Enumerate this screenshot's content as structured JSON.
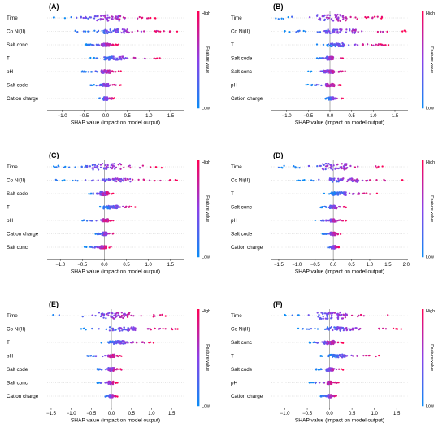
{
  "figure": {
    "colorbar": {
      "high": "High",
      "low": "Low",
      "title": "Feature value"
    },
    "colors": {
      "low": "#0A8CF5",
      "mid": "#8B40E8",
      "high": "#FF0054"
    }
  },
  "chart_data": [
    {
      "type": "scatter",
      "subtype": "shap-beeswarm",
      "panel": "(A)",
      "xlabel": "SHAP value (impact on model output)",
      "xlim": [
        -1.35,
        1.8
      ],
      "xticks": [
        "−1.0",
        "−0.5",
        "0.0",
        "0.5",
        "1.0",
        "1.5"
      ],
      "tickvalues": [
        -1.0,
        -0.5,
        0.0,
        0.5,
        1.0,
        1.5
      ],
      "features": [
        {
          "name": "Time",
          "min": -1.2,
          "max": 1.15,
          "q1": -0.25,
          "q3": 0.35,
          "width": 0.9
        },
        {
          "name": "Co Ni(II)",
          "min": -0.7,
          "max": 1.65,
          "q1": -0.05,
          "q3": 0.55,
          "width": 0.6
        },
        {
          "name": "Salt conc",
          "min": -0.45,
          "max": 0.3,
          "q1": -0.1,
          "q3": 0.1,
          "width": 0.4
        },
        {
          "name": "T",
          "min": -0.35,
          "max": 1.25,
          "q1": -0.05,
          "q3": 0.45,
          "width": 0.5
        },
        {
          "name": "pH",
          "min": -0.55,
          "max": 0.35,
          "q1": -0.1,
          "q3": 0.1,
          "width": 0.45
        },
        {
          "name": "Salt code",
          "min": -0.35,
          "max": 0.35,
          "q1": -0.08,
          "q3": 0.08,
          "width": 0.4
        },
        {
          "name": "Cation charge",
          "min": -0.15,
          "max": 0.2,
          "q1": -0.05,
          "q3": 0.05,
          "width": 0.45
        }
      ]
    },
    {
      "type": "scatter",
      "subtype": "shap-beeswarm",
      "panel": "(B)",
      "xlabel": "SHAP value (impact on model output)",
      "xlim": [
        -1.35,
        1.8
      ],
      "xticks": [
        "−1.0",
        "−0.5",
        "0.0",
        "0.5",
        "1.0",
        "1.5"
      ],
      "tickvalues": [
        -1.0,
        -0.5,
        0.0,
        0.5,
        1.0,
        1.5
      ],
      "features": [
        {
          "name": "Time",
          "min": -1.25,
          "max": 1.2,
          "q1": -0.3,
          "q3": 0.4,
          "width": 0.95
        },
        {
          "name": "Co Ni(II)",
          "min": -1.05,
          "max": 1.75,
          "q1": -0.1,
          "q3": 0.6,
          "width": 0.6
        },
        {
          "name": "T",
          "min": -0.3,
          "max": 1.35,
          "q1": -0.05,
          "q3": 0.35,
          "width": 0.5
        },
        {
          "name": "Salt code",
          "min": -0.3,
          "max": 0.3,
          "q1": -0.08,
          "q3": 0.08,
          "width": 0.45
        },
        {
          "name": "Salt conc",
          "min": -0.5,
          "max": 0.35,
          "q1": -0.15,
          "q3": 0.1,
          "width": 0.45
        },
        {
          "name": "pH",
          "min": -0.55,
          "max": 0.25,
          "q1": -0.1,
          "q3": 0.1,
          "width": 0.4
        },
        {
          "name": "Cation charge",
          "min": -0.1,
          "max": 0.3,
          "q1": -0.05,
          "q3": 0.08,
          "width": 0.4
        }
      ]
    },
    {
      "type": "scatter",
      "subtype": "shap-beeswarm",
      "panel": "(C)",
      "xlabel": "SHAP value (impact on model output)",
      "xlim": [
        -1.3,
        1.8
      ],
      "xticks": [
        "−1.0",
        "−0.5",
        "0.0",
        "0.5",
        "1.0",
        "1.5"
      ],
      "tickvalues": [
        -1.0,
        -0.5,
        0.0,
        0.5,
        1.0,
        1.5
      ],
      "features": [
        {
          "name": "Time",
          "min": -1.15,
          "max": 1.3,
          "q1": -0.3,
          "q3": 0.4,
          "width": 0.95
        },
        {
          "name": "Co Ni(II)",
          "min": -1.1,
          "max": 1.65,
          "q1": -0.05,
          "q3": 0.6,
          "width": 0.55
        },
        {
          "name": "Salt code",
          "min": -0.35,
          "max": 0.2,
          "q1": -0.1,
          "q3": 0.1,
          "width": 0.5
        },
        {
          "name": "T",
          "min": -0.1,
          "max": 0.7,
          "q1": -0.02,
          "q3": 0.3,
          "width": 0.45
        },
        {
          "name": "pH",
          "min": -0.5,
          "max": 0.2,
          "q1": -0.05,
          "q3": 0.08,
          "width": 0.4
        },
        {
          "name": "Cation charge",
          "min": -0.2,
          "max": 0.2,
          "q1": -0.05,
          "q3": 0.05,
          "width": 0.45
        },
        {
          "name": "Salt conc",
          "min": -0.45,
          "max": 0.15,
          "q1": -0.1,
          "q3": 0.05,
          "width": 0.4
        }
      ]
    },
    {
      "type": "scatter",
      "subtype": "shap-beeswarm",
      "panel": "(D)",
      "xlabel": "SHAP value (impact on model output)",
      "xlim": [
        -1.7,
        2.05
      ],
      "xticks": [
        "−1.5",
        "−1.0",
        "−0.5",
        "0.0",
        "0.5",
        "1.0",
        "1.5",
        "2.0"
      ],
      "tickvalues": [
        -1.5,
        -1.0,
        -0.5,
        0.0,
        0.5,
        1.0,
        1.5,
        2.0
      ],
      "features": [
        {
          "name": "Time",
          "min": -1.5,
          "max": 1.35,
          "q1": -0.3,
          "q3": 0.4,
          "width": 0.95
        },
        {
          "name": "Co Ni(II)",
          "min": -1.0,
          "max": 1.9,
          "q1": -0.1,
          "q3": 0.7,
          "width": 0.55
        },
        {
          "name": "T",
          "min": -0.25,
          "max": 1.2,
          "q1": -0.05,
          "q3": 0.35,
          "width": 0.45
        },
        {
          "name": "Salt conc",
          "min": -0.35,
          "max": 0.35,
          "q1": -0.1,
          "q3": 0.1,
          "width": 0.45
        },
        {
          "name": "pH",
          "min": -0.5,
          "max": 0.35,
          "q1": -0.08,
          "q3": 0.08,
          "width": 0.4
        },
        {
          "name": "Salt code",
          "min": -0.3,
          "max": 0.2,
          "q1": -0.08,
          "q3": 0.08,
          "width": 0.45
        },
        {
          "name": "Cation charge",
          "min": -0.15,
          "max": 0.15,
          "q1": -0.05,
          "q3": 0.05,
          "width": 0.4
        }
      ]
    },
    {
      "type": "scatter",
      "subtype": "shap-beeswarm",
      "panel": "(E)",
      "xlabel": "SHAP value (impact on model output)",
      "xlim": [
        -1.6,
        1.8
      ],
      "xticks": [
        "−1.5",
        "−1.0",
        "−0.5",
        "0.0",
        "0.5",
        "1.0",
        "1.5"
      ],
      "tickvalues": [
        -1.5,
        -1.0,
        -0.5,
        0.0,
        0.5,
        1.0,
        1.5
      ],
      "features": [
        {
          "name": "Time",
          "min": -1.45,
          "max": 1.35,
          "q1": -0.35,
          "q3": 0.45,
          "width": 0.95
        },
        {
          "name": "Co Ni(II)",
          "min": -0.75,
          "max": 1.65,
          "q1": -0.05,
          "q3": 0.6,
          "width": 0.55
        },
        {
          "name": "T",
          "min": -0.25,
          "max": 1.05,
          "q1": -0.05,
          "q3": 0.35,
          "width": 0.45
        },
        {
          "name": "pH",
          "min": -0.6,
          "max": 0.25,
          "q1": -0.08,
          "q3": 0.08,
          "width": 0.4
        },
        {
          "name": "Salt code",
          "min": -0.35,
          "max": 0.25,
          "q1": -0.08,
          "q3": 0.08,
          "width": 0.45
        },
        {
          "name": "Salt conc",
          "min": -0.35,
          "max": 0.15,
          "q1": -0.08,
          "q3": 0.05,
          "width": 0.4
        },
        {
          "name": "Cation charge",
          "min": -0.15,
          "max": 0.15,
          "q1": -0.05,
          "q3": 0.05,
          "width": 0.4
        }
      ]
    },
    {
      "type": "scatter",
      "subtype": "shap-beeswarm",
      "panel": "(F)",
      "xlabel": "SHAP value (impact on model output)",
      "xlim": [
        -1.3,
        1.75
      ],
      "xticks": [
        "−1.0",
        "−0.5",
        "0.0",
        "0.5",
        "1.0",
        "1.5"
      ],
      "tickvalues": [
        -1.0,
        -0.5,
        0.0,
        0.5,
        1.0,
        1.5
      ],
      "features": [
        {
          "name": "Time",
          "min": -1.0,
          "max": 1.3,
          "q1": -0.3,
          "q3": 0.4,
          "width": 0.95
        },
        {
          "name": "Co Ni(II)",
          "min": -0.7,
          "max": 1.6,
          "q1": -0.05,
          "q3": 0.6,
          "width": 0.55
        },
        {
          "name": "Salt conc",
          "min": -0.45,
          "max": 0.3,
          "q1": -0.12,
          "q3": 0.1,
          "width": 0.5
        },
        {
          "name": "T",
          "min": -0.2,
          "max": 1.1,
          "q1": -0.05,
          "q3": 0.35,
          "width": 0.45
        },
        {
          "name": "Salt code",
          "min": -0.3,
          "max": 0.3,
          "q1": -0.08,
          "q3": 0.08,
          "width": 0.45
        },
        {
          "name": "pH",
          "min": -0.45,
          "max": 0.2,
          "q1": -0.05,
          "q3": 0.05,
          "width": 0.4
        },
        {
          "name": "Cation charge",
          "min": -0.2,
          "max": 0.15,
          "q1": -0.05,
          "q3": 0.05,
          "width": 0.4
        }
      ]
    }
  ]
}
